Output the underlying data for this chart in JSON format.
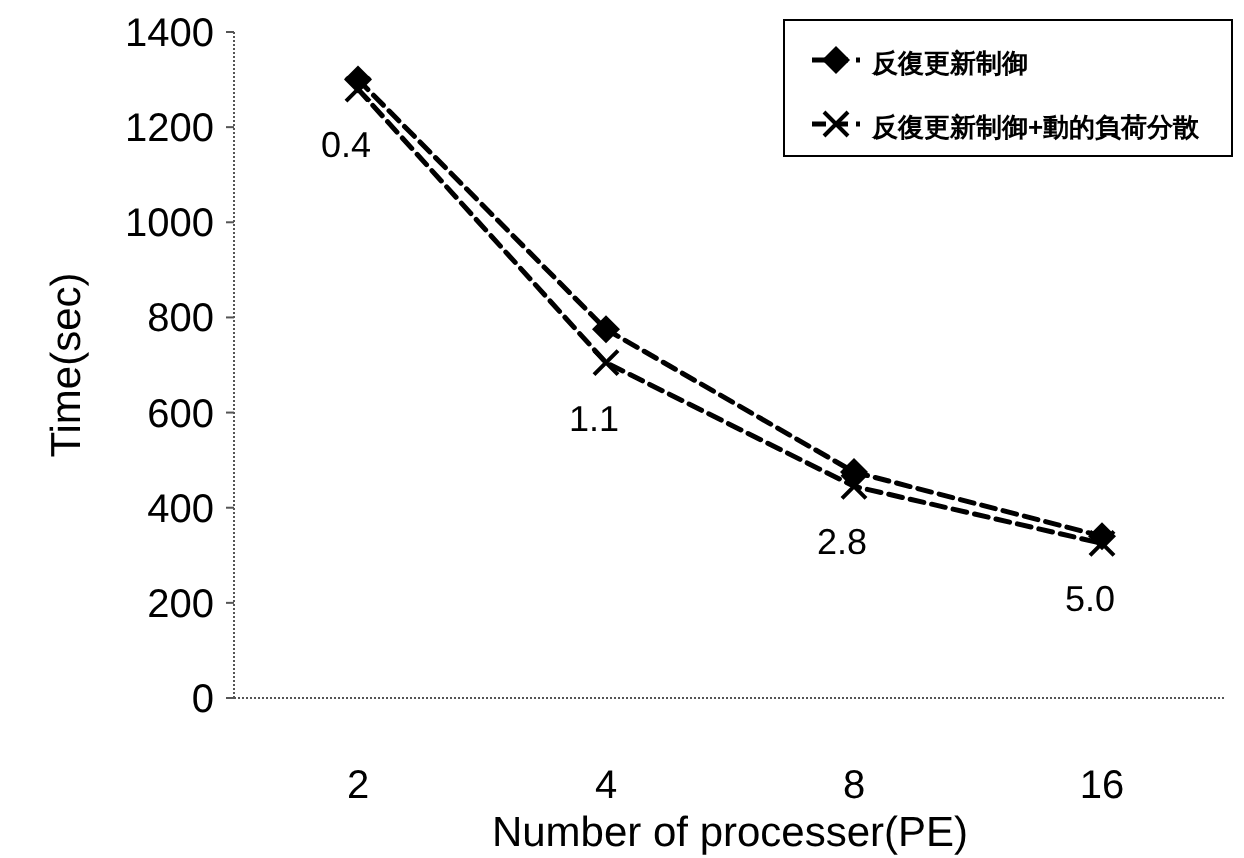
{
  "chart_data": {
    "type": "line",
    "xlabel": "Number of processer(PE)",
    "ylabel": "Time(sec)",
    "categories": [
      "2",
      "4",
      "8",
      "16"
    ],
    "series": [
      {
        "name": "反復更新制御",
        "color": "#000000",
        "values": [
          1300,
          775,
          475,
          340
        ],
        "marker": "diamond",
        "line_style": "dashed"
      },
      {
        "name": "反復更新制御+動的負荷分散",
        "color": "#000000",
        "values": [
          1280,
          705,
          445,
          325
        ],
        "marker": "cross",
        "line_style": "dashed"
      }
    ],
    "ylim": [
      0,
      1400
    ],
    "yticks": [
      0,
      200,
      400,
      600,
      800,
      1000,
      1200,
      1400
    ],
    "annotations": [
      {
        "text": "0.4",
        "x": "2",
        "y": 1280
      },
      {
        "text": "1.1",
        "x": "4",
        "y": 705
      },
      {
        "text": "2.8",
        "x": "8",
        "y": 445
      },
      {
        "text": "5.0",
        "x": "16",
        "y": 325
      }
    ],
    "grid": false,
    "legend": "top right"
  }
}
